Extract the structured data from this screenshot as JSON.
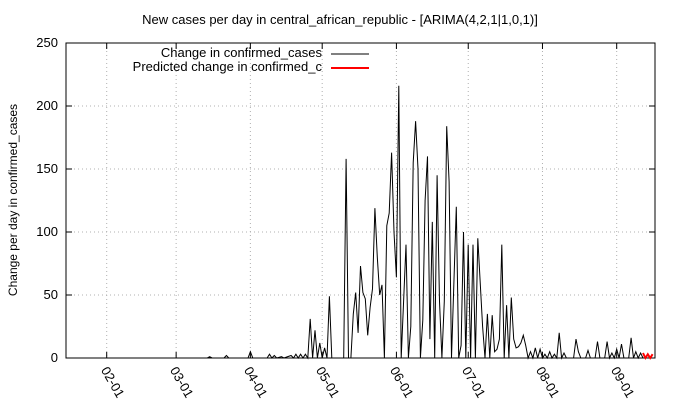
{
  "chart_data": {
    "type": "line",
    "title": "New cases per day in central_african_republic -  [ARIMA(4,2,1|1,0,1)]",
    "xlabel": "",
    "ylabel": "Change per day in confirmed_cases",
    "ylim": [
      0,
      250
    ],
    "yticks": [
      "0",
      "50",
      "100",
      "150",
      "200",
      "250"
    ],
    "xlim": [
      "2020-01-15",
      "2020-09-17"
    ],
    "xticks": [
      {
        "label": "02-01",
        "date": "2020-02-01"
      },
      {
        "label": "03-01",
        "date": "2020-03-01"
      },
      {
        "label": "04-01",
        "date": "2020-04-01"
      },
      {
        "label": "05-01",
        "date": "2020-05-01"
      },
      {
        "label": "06-01",
        "date": "2020-06-01"
      },
      {
        "label": "07-01",
        "date": "2020-07-01"
      },
      {
        "label": "08-01",
        "date": "2020-08-01"
      },
      {
        "label": "09-01",
        "date": "2020-09-01"
      }
    ],
    "grid": true,
    "legend_position": "top-left",
    "series": [
      {
        "name": "Change in confirmed_cases",
        "color": "#000000",
        "points": [
          [
            "2020-03-14",
            0
          ],
          [
            "2020-03-15",
            1
          ],
          [
            "2020-03-16",
            0
          ],
          [
            "2020-03-21",
            0
          ],
          [
            "2020-03-22",
            2
          ],
          [
            "2020-03-23",
            0
          ],
          [
            "2020-03-31",
            0
          ],
          [
            "2020-04-01",
            5
          ],
          [
            "2020-04-02",
            0
          ],
          [
            "2020-04-08",
            0
          ],
          [
            "2020-04-09",
            3
          ],
          [
            "2020-04-10",
            0
          ],
          [
            "2020-04-11",
            2
          ],
          [
            "2020-04-12",
            0
          ],
          [
            "2020-04-14",
            1
          ],
          [
            "2020-04-15",
            0
          ],
          [
            "2020-04-18",
            2
          ],
          [
            "2020-04-19",
            0
          ],
          [
            "2020-04-20",
            3
          ],
          [
            "2020-04-21",
            0
          ],
          [
            "2020-04-22",
            3
          ],
          [
            "2020-04-23",
            0
          ],
          [
            "2020-04-24",
            3
          ],
          [
            "2020-04-25",
            0
          ],
          [
            "2020-04-26",
            31
          ],
          [
            "2020-04-27",
            0
          ],
          [
            "2020-04-28",
            22
          ],
          [
            "2020-04-29",
            0
          ],
          [
            "2020-04-30",
            12
          ],
          [
            "2020-05-01",
            0
          ],
          [
            "2020-05-02",
            8
          ],
          [
            "2020-05-03",
            0
          ],
          [
            "2020-05-04",
            49
          ],
          [
            "2020-05-05",
            0
          ],
          [
            "2020-05-10",
            0
          ],
          [
            "2020-05-11",
            158
          ],
          [
            "2020-05-12",
            0
          ],
          [
            "2020-05-13",
            0
          ],
          [
            "2020-05-14",
            35
          ],
          [
            "2020-05-15",
            52
          ],
          [
            "2020-05-16",
            20
          ],
          [
            "2020-05-17",
            73
          ],
          [
            "2020-05-18",
            52
          ],
          [
            "2020-05-19",
            47
          ],
          [
            "2020-05-20",
            18
          ],
          [
            "2020-05-21",
            40
          ],
          [
            "2020-05-22",
            55
          ],
          [
            "2020-05-23",
            119
          ],
          [
            "2020-05-24",
            80
          ],
          [
            "2020-05-25",
            50
          ],
          [
            "2020-05-26",
            58
          ],
          [
            "2020-05-27",
            0
          ],
          [
            "2020-05-28",
            105
          ],
          [
            "2020-05-29",
            115
          ],
          [
            "2020-05-30",
            163
          ],
          [
            "2020-05-31",
            100
          ],
          [
            "2020-06-01",
            64
          ],
          [
            "2020-06-02",
            216
          ],
          [
            "2020-06-03",
            0
          ],
          [
            "2020-06-04",
            45
          ],
          [
            "2020-06-05",
            90
          ],
          [
            "2020-06-06",
            0
          ],
          [
            "2020-06-07",
            25
          ],
          [
            "2020-06-08",
            155
          ],
          [
            "2020-06-09",
            188
          ],
          [
            "2020-06-10",
            150
          ],
          [
            "2020-06-11",
            0
          ],
          [
            "2020-06-12",
            30
          ],
          [
            "2020-06-13",
            125
          ],
          [
            "2020-06-14",
            160
          ],
          [
            "2020-06-15",
            15
          ],
          [
            "2020-06-16",
            108
          ],
          [
            "2020-06-17",
            0
          ],
          [
            "2020-06-18",
            145
          ],
          [
            "2020-06-19",
            45
          ],
          [
            "2020-06-20",
            0
          ],
          [
            "2020-06-21",
            45
          ],
          [
            "2020-06-22",
            184
          ],
          [
            "2020-06-23",
            140
          ],
          [
            "2020-06-24",
            0
          ],
          [
            "2020-06-25",
            60
          ],
          [
            "2020-06-26",
            120
          ],
          [
            "2020-06-27",
            0
          ],
          [
            "2020-06-28",
            10
          ],
          [
            "2020-06-29",
            100
          ],
          [
            "2020-06-30",
            0
          ],
          [
            "2020-07-01",
            90
          ],
          [
            "2020-07-02",
            0
          ],
          [
            "2020-07-03",
            90
          ],
          [
            "2020-07-04",
            0
          ],
          [
            "2020-07-05",
            95
          ],
          [
            "2020-07-06",
            60
          ],
          [
            "2020-07-07",
            25
          ],
          [
            "2020-07-08",
            0
          ],
          [
            "2020-07-09",
            35
          ],
          [
            "2020-07-10",
            0
          ],
          [
            "2020-07-11",
            34
          ],
          [
            "2020-07-12",
            5
          ],
          [
            "2020-07-13",
            7
          ],
          [
            "2020-07-14",
            15
          ],
          [
            "2020-07-15",
            90
          ],
          [
            "2020-07-16",
            0
          ],
          [
            "2020-07-17",
            42
          ],
          [
            "2020-07-18",
            0
          ],
          [
            "2020-07-19",
            48
          ],
          [
            "2020-07-20",
            15
          ],
          [
            "2020-07-21",
            8
          ],
          [
            "2020-07-22",
            9
          ],
          [
            "2020-07-23",
            12
          ],
          [
            "2020-07-24",
            18
          ],
          [
            "2020-07-25",
            10
          ],
          [
            "2020-07-26",
            0
          ],
          [
            "2020-07-27",
            5
          ],
          [
            "2020-07-28",
            0
          ],
          [
            "2020-07-29",
            8
          ],
          [
            "2020-07-30",
            0
          ],
          [
            "2020-07-31",
            7
          ],
          [
            "2020-08-01",
            0
          ],
          [
            "2020-08-02",
            3
          ],
          [
            "2020-08-03",
            0
          ],
          [
            "2020-08-04",
            5
          ],
          [
            "2020-08-05",
            0
          ],
          [
            "2020-08-06",
            3
          ],
          [
            "2020-08-07",
            0
          ],
          [
            "2020-08-08",
            20
          ],
          [
            "2020-08-09",
            0
          ],
          [
            "2020-08-10",
            4
          ],
          [
            "2020-08-11",
            0
          ],
          [
            "2020-08-14",
            0
          ],
          [
            "2020-08-15",
            15
          ],
          [
            "2020-08-16",
            5
          ],
          [
            "2020-08-17",
            0
          ],
          [
            "2020-08-19",
            0
          ],
          [
            "2020-08-20",
            6
          ],
          [
            "2020-08-21",
            0
          ],
          [
            "2020-08-23",
            0
          ],
          [
            "2020-08-24",
            13
          ],
          [
            "2020-08-25",
            0
          ],
          [
            "2020-08-27",
            0
          ],
          [
            "2020-08-28",
            13
          ],
          [
            "2020-08-29",
            0
          ],
          [
            "2020-08-30",
            4
          ],
          [
            "2020-08-31",
            0
          ],
          [
            "2020-09-01",
            7
          ],
          [
            "2020-09-02",
            0
          ],
          [
            "2020-09-03",
            11
          ],
          [
            "2020-09-04",
            0
          ],
          [
            "2020-09-06",
            0
          ],
          [
            "2020-09-07",
            16
          ],
          [
            "2020-09-08",
            0
          ],
          [
            "2020-09-09",
            5
          ],
          [
            "2020-09-10",
            0
          ],
          [
            "2020-09-11",
            4
          ],
          [
            "2020-09-12",
            0
          ]
        ]
      },
      {
        "name": "Predicted change in confirmed_c",
        "color": "#ff0000",
        "points": [
          [
            "2020-09-12",
            4
          ],
          [
            "2020-09-13",
            0
          ],
          [
            "2020-09-14",
            3
          ],
          [
            "2020-09-15",
            0
          ],
          [
            "2020-09-16",
            3
          ]
        ]
      }
    ]
  }
}
